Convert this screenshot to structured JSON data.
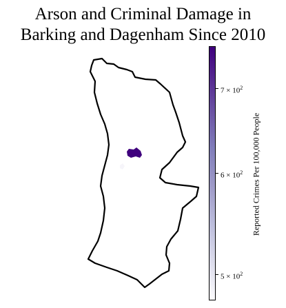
{
  "title_line1": "Arson and Criminal Damage in",
  "title_line2": "Barking and Dagenham Since 2010",
  "colorbar": {
    "label": "Reported Crimes Per 100,000 People",
    "scale": "log",
    "colors": {
      "high": "#3f007d",
      "low": "#fcfbfd"
    },
    "ticks": [
      {
        "base": "7 × 10",
        "exp": "2"
      },
      {
        "base": "6 × 10",
        "exp": "2"
      },
      {
        "base": "5 × 10",
        "exp": "2"
      }
    ]
  },
  "chart_data": {
    "type": "choropleth",
    "value_range": [
      470,
      750
    ],
    "tick_values": [
      700,
      600,
      500
    ]
  }
}
